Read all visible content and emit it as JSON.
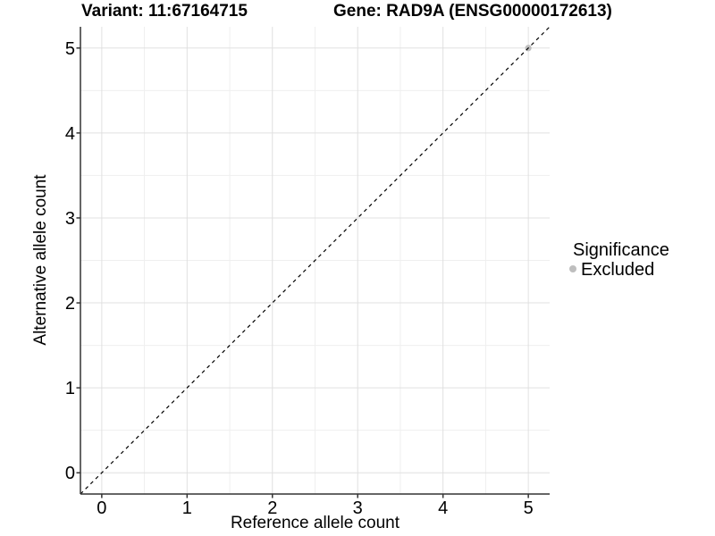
{
  "header": {
    "title_left": "Variant: 11:67164715",
    "title_right": "Gene: RAD9A (ENSG00000172613)"
  },
  "chart_data": {
    "type": "scatter",
    "title": "Variant: 11:67164715  /  Gene: RAD9A (ENSG00000172613)",
    "xlabel": "Reference allele count",
    "ylabel": "Alternative allele count",
    "xlim": [
      -0.25,
      5.25
    ],
    "ylim": [
      -0.25,
      5.25
    ],
    "x_ticks": [
      0,
      1,
      2,
      3,
      4,
      5
    ],
    "y_ticks": [
      0,
      1,
      2,
      3,
      4,
      5
    ],
    "minor_ticks": [
      0.5,
      1.5,
      2.5,
      3.5,
      4.5
    ],
    "grid": "major+minor gridlines, white panel background",
    "series": [
      {
        "name": "Excluded",
        "color": "#bebebe",
        "points": [
          {
            "x": 5,
            "y": 5
          }
        ]
      }
    ],
    "reference_line": {
      "type": "identity y=x",
      "style": "dashed",
      "color": "#000000"
    },
    "legend": {
      "title": "Significance",
      "position": "right",
      "items": [
        {
          "label": "Excluded",
          "color": "#bebebe"
        }
      ]
    }
  },
  "style": {
    "grid_major_color": "#e0e0e0",
    "grid_minor_color": "#efefef",
    "axis_line_color": "#333333",
    "tick_color": "#333333",
    "point_radius": 3.6,
    "background": "#ffffff"
  }
}
